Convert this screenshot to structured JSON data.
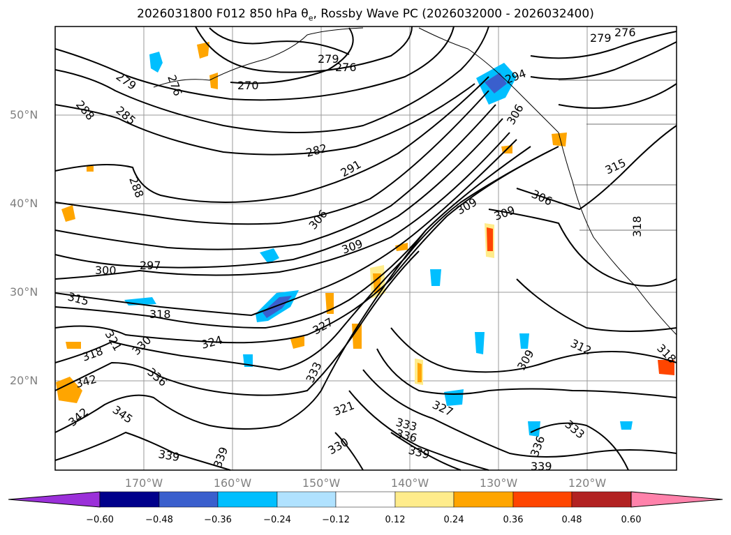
{
  "title": "2026031800 F012 850 hPa θe, Rossby Wave PC (2026032000 - 2026032400)",
  "map": {
    "lat_labels": [
      "50°N",
      "40°N",
      "30°N",
      "20°N"
    ],
    "lon_labels": [
      "170°W",
      "160°W",
      "150°W",
      "140°W",
      "130°W",
      "120°W"
    ],
    "contour_labels": [
      "270",
      "276",
      "279",
      "279",
      "276",
      "279",
      "276",
      "285",
      "288",
      "282",
      "291",
      "288",
      "306",
      "309",
      "309",
      "309",
      "306",
      "300",
      "297",
      "315",
      "318",
      "318",
      "321",
      "324",
      "327",
      "330",
      "333",
      "336",
      "342",
      "342",
      "345",
      "339",
      "339",
      "330",
      "321",
      "333",
      "336",
      "339",
      "327",
      "333",
      "336",
      "339",
      "312",
      "309",
      "306",
      "294",
      "315",
      "318",
      "318"
    ]
  },
  "colorbar": {
    "colors": [
      "#9b30d9",
      "#00008b",
      "#3a5fcd",
      "#00bfff",
      "#b0e2ff",
      "#ffffff",
      "#ffec8b",
      "#ffa500",
      "#ff4500",
      "#b22222",
      "#ff82ab"
    ],
    "tick_labels": [
      "−0.60",
      "−0.48",
      "−0.36",
      "−0.24",
      "−0.12",
      "0.12",
      "0.24",
      "0.36",
      "0.48",
      "0.60"
    ]
  }
}
